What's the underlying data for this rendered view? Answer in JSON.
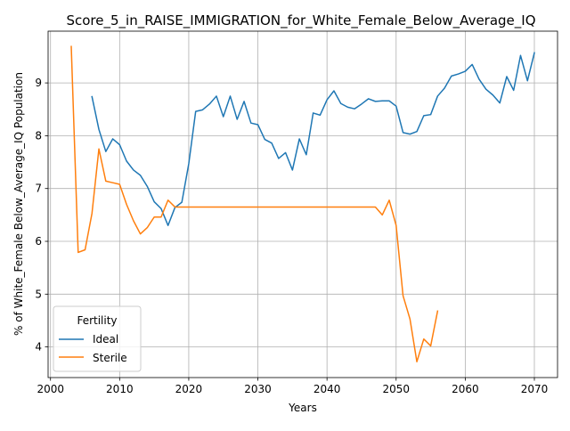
{
  "chart_data": {
    "type": "line",
    "title": "Score_5_in_RAISE_IMMIGRATION_for_White_Female_Below_Average_IQ",
    "xlabel": "Years",
    "ylabel": "% of White_Female Below_Average_IQ Population",
    "xlim": [
      1999.65,
      2073.35
    ],
    "ylim": [
      3.42,
      9.98
    ],
    "xticks": [
      2000,
      2010,
      2020,
      2030,
      2040,
      2050,
      2060,
      2070
    ],
    "yticks": [
      4,
      5,
      6,
      7,
      8,
      9
    ],
    "grid": true,
    "legend": {
      "title": "Fertility",
      "placement": "lower-left"
    },
    "series": [
      {
        "name": "Ideal",
        "color": "#1f77b4",
        "points": [
          [
            2006,
            8.74
          ],
          [
            2007,
            8.12
          ],
          [
            2008,
            7.7
          ],
          [
            2009,
            7.94
          ],
          [
            2010,
            7.83
          ],
          [
            2011,
            7.52
          ],
          [
            2012,
            7.35
          ],
          [
            2013,
            7.25
          ],
          [
            2014,
            7.04
          ],
          [
            2015,
            6.75
          ],
          [
            2016,
            6.62
          ],
          [
            2017,
            6.3
          ],
          [
            2018,
            6.64
          ],
          [
            2019,
            6.74
          ],
          [
            2020,
            7.47
          ],
          [
            2021,
            8.46
          ],
          [
            2022,
            8.49
          ],
          [
            2023,
            8.6
          ],
          [
            2024,
            8.75
          ],
          [
            2025,
            8.36
          ],
          [
            2026,
            8.75
          ],
          [
            2027,
            8.31
          ],
          [
            2028,
            8.65
          ],
          [
            2029,
            8.24
          ],
          [
            2030,
            8.21
          ],
          [
            2031,
            7.93
          ],
          [
            2032,
            7.86
          ],
          [
            2033,
            7.57
          ],
          [
            2034,
            7.68
          ],
          [
            2035,
            7.35
          ],
          [
            2036,
            7.94
          ],
          [
            2037,
            7.64
          ],
          [
            2038,
            8.43
          ],
          [
            2039,
            8.39
          ],
          [
            2040,
            8.68
          ],
          [
            2041,
            8.85
          ],
          [
            2042,
            8.61
          ],
          [
            2043,
            8.54
          ],
          [
            2044,
            8.51
          ],
          [
            2045,
            8.6
          ],
          [
            2046,
            8.7
          ],
          [
            2047,
            8.65
          ],
          [
            2048,
            8.66
          ],
          [
            2049,
            8.66
          ],
          [
            2050,
            8.56
          ],
          [
            2051,
            8.06
          ],
          [
            2052,
            8.03
          ],
          [
            2053,
            8.08
          ],
          [
            2054,
            8.38
          ],
          [
            2055,
            8.4
          ],
          [
            2056,
            8.75
          ],
          [
            2057,
            8.9
          ],
          [
            2058,
            9.13
          ],
          [
            2059,
            9.17
          ],
          [
            2060,
            9.22
          ],
          [
            2061,
            9.35
          ],
          [
            2062,
            9.07
          ],
          [
            2063,
            8.88
          ],
          [
            2064,
            8.77
          ],
          [
            2065,
            8.62
          ],
          [
            2066,
            9.12
          ],
          [
            2067,
            8.86
          ],
          [
            2068,
            9.52
          ],
          [
            2069,
            9.04
          ],
          [
            2070,
            9.57
          ]
        ]
      },
      {
        "name": "Sterile",
        "color": "#ff7f0e",
        "points": [
          [
            2003,
            9.69
          ],
          [
            2004,
            5.79
          ],
          [
            2005,
            5.84
          ],
          [
            2006,
            6.53
          ],
          [
            2007,
            7.75
          ],
          [
            2008,
            7.14
          ],
          [
            2009,
            7.11
          ],
          [
            2010,
            7.08
          ],
          [
            2011,
            6.7
          ],
          [
            2012,
            6.39
          ],
          [
            2013,
            6.14
          ],
          [
            2014,
            6.26
          ],
          [
            2015,
            6.46
          ],
          [
            2016,
            6.46
          ],
          [
            2017,
            6.78
          ],
          [
            2018,
            6.65
          ],
          [
            2019,
            6.65
          ],
          [
            2020,
            6.65
          ],
          [
            2021,
            6.65
          ],
          [
            2022,
            6.65
          ],
          [
            2023,
            6.65
          ],
          [
            2024,
            6.65
          ],
          [
            2025,
            6.65
          ],
          [
            2026,
            6.65
          ],
          [
            2027,
            6.65
          ],
          [
            2028,
            6.65
          ],
          [
            2029,
            6.65
          ],
          [
            2030,
            6.65
          ],
          [
            2031,
            6.65
          ],
          [
            2032,
            6.65
          ],
          [
            2033,
            6.65
          ],
          [
            2034,
            6.65
          ],
          [
            2035,
            6.65
          ],
          [
            2036,
            6.65
          ],
          [
            2037,
            6.65
          ],
          [
            2038,
            6.65
          ],
          [
            2039,
            6.65
          ],
          [
            2040,
            6.65
          ],
          [
            2041,
            6.65
          ],
          [
            2042,
            6.65
          ],
          [
            2043,
            6.65
          ],
          [
            2044,
            6.65
          ],
          [
            2045,
            6.65
          ],
          [
            2046,
            6.65
          ],
          [
            2047,
            6.65
          ],
          [
            2048,
            6.5
          ],
          [
            2049,
            6.78
          ],
          [
            2050,
            6.3
          ],
          [
            2051,
            4.97
          ],
          [
            2052,
            4.53
          ],
          [
            2053,
            3.72
          ],
          [
            2054,
            4.15
          ],
          [
            2055,
            4.02
          ],
          [
            2056,
            4.68
          ]
        ]
      }
    ]
  }
}
